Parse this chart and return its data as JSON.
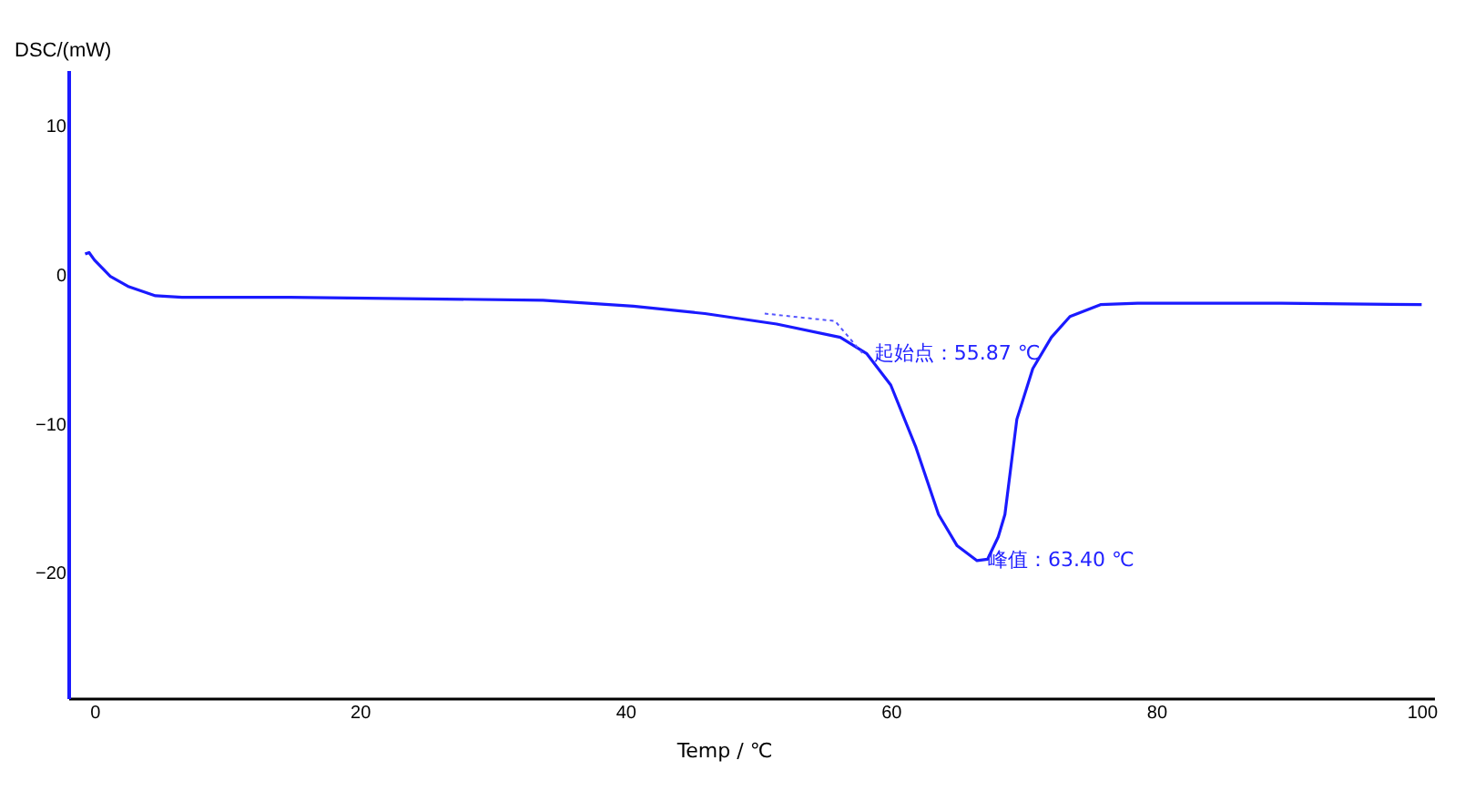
{
  "chart_data": {
    "type": "line",
    "xlabel": "Temp / ℃",
    "ylabel": "DSC/(mW)",
    "xlim": [
      -1.9,
      101
    ],
    "ylim": [
      -28.5,
      13.7
    ],
    "xticks": [
      0,
      20,
      40,
      60,
      80,
      100
    ],
    "yticks": [
      -20,
      -10,
      0,
      10
    ],
    "grid": false,
    "marker": "none",
    "series": [
      {
        "color": "#1a1aff",
        "line_style": "solid",
        "x": [
          -0.7,
          -0.4,
          0,
          1.2,
          2.6,
          4.6,
          6.6,
          14.8,
          33.8,
          40.6,
          46,
          51.4,
          56.2,
          58.2,
          60,
          61.9,
          63.6,
          65,
          66.5,
          67.3,
          68.1,
          68.6,
          69.5,
          70.7,
          72.1,
          73.5,
          75.8,
          78.6,
          82.6,
          89.4,
          100
        ],
        "values": [
          1.4,
          1.5,
          1.0,
          -0.1,
          -0.8,
          -1.4,
          -1.5,
          -1.5,
          -1.7,
          -2.1,
          -2.6,
          -3.3,
          -4.2,
          -5.3,
          -7.4,
          -11.6,
          -16.1,
          -18.2,
          -19.2,
          -19.1,
          -17.6,
          -16.1,
          -9.7,
          -6.3,
          -4.2,
          -2.8,
          -2.0,
          -1.9,
          -1.9,
          -1.9,
          -2.0
        ]
      },
      {
        "color": "#5555ff",
        "line_style": "dotted",
        "x": [
          50.5,
          55.8,
          57.9
        ],
        "values": [
          -2.6,
          -3.1,
          -5.3
        ]
      }
    ],
    "annotations": [
      {
        "text": "起始点：55.87 ℃",
        "x": 57.9,
        "y": -5.3
      },
      {
        "text": "峰值：63.40 ℃",
        "x": 66.5,
        "y": -19.2
      }
    ]
  }
}
